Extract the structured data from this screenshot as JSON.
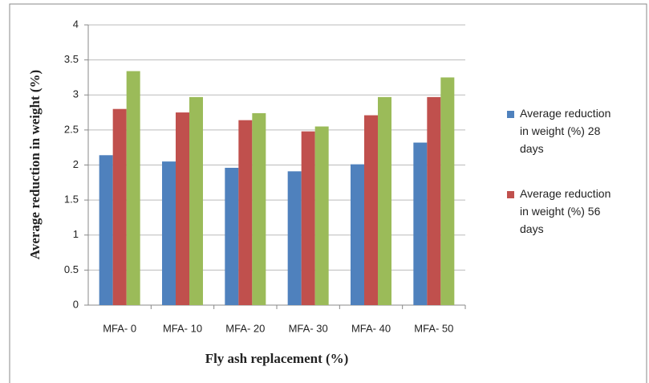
{
  "chart_data": {
    "type": "bar",
    "y_label": "Average reduction in weight (%)",
    "x_label": "Fly ash replacement (%)",
    "categories": [
      "MFA- 0",
      "MFA- 10",
      "MFA- 20",
      "MFA- 30",
      "MFA- 40",
      "MFA- 50"
    ],
    "series": [
      {
        "name": "Average reduction in weight (%) 28 days",
        "color": "#4f81bd",
        "values": [
          2.14,
          2.05,
          1.96,
          1.91,
          2.01,
          2.32
        ]
      },
      {
        "name": "Average reduction in weight (%) 56 days",
        "color": "#c0504d",
        "values": [
          2.8,
          2.75,
          2.64,
          2.48,
          2.71,
          2.97
        ]
      },
      {
        "color": "#9bbb59",
        "values": [
          3.34,
          2.97,
          2.74,
          2.55,
          2.97,
          3.25
        ]
      }
    ],
    "ylim": [
      0,
      4
    ],
    "yticks": [
      0,
      0.5,
      1,
      1.5,
      2,
      2.5,
      3,
      3.5,
      4
    ],
    "grid": true
  }
}
